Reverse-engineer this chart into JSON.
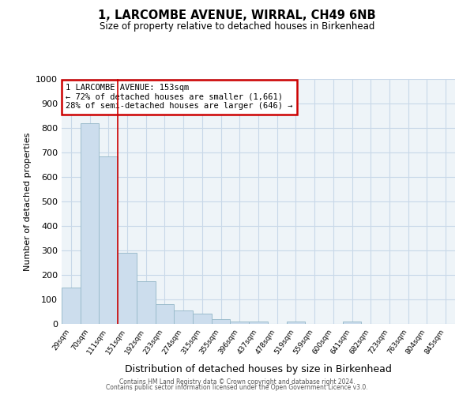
{
  "title": "1, LARCOMBE AVENUE, WIRRAL, CH49 6NB",
  "subtitle": "Size of property relative to detached houses in Birkenhead",
  "xlabel": "Distribution of detached houses by size in Birkenhead",
  "ylabel": "Number of detached properties",
  "categories": [
    "29sqm",
    "70sqm",
    "111sqm",
    "151sqm",
    "192sqm",
    "233sqm",
    "274sqm",
    "315sqm",
    "355sqm",
    "396sqm",
    "437sqm",
    "478sqm",
    "519sqm",
    "559sqm",
    "600sqm",
    "641sqm",
    "682sqm",
    "723sqm",
    "763sqm",
    "804sqm",
    "845sqm"
  ],
  "values": [
    150,
    820,
    685,
    290,
    175,
    80,
    55,
    42,
    20,
    10,
    10,
    0,
    10,
    0,
    0,
    10,
    0,
    0,
    0,
    0,
    0
  ],
  "bar_color": "#ccdded",
  "bar_edge_color": "#9bbccc",
  "grid_color": "#c8d8e8",
  "plot_bg_color": "#eef4f8",
  "fig_bg_color": "#ffffff",
  "red_line_x": 3,
  "annotation_text": "1 LARCOMBE AVENUE: 153sqm\n← 72% of detached houses are smaller (1,661)\n28% of semi-detached houses are larger (646) →",
  "annotation_box_color": "#ffffff",
  "annotation_box_edge_color": "#cc0000",
  "ylim": [
    0,
    1000
  ],
  "yticks": [
    0,
    100,
    200,
    300,
    400,
    500,
    600,
    700,
    800,
    900,
    1000
  ],
  "footer_line1": "Contains HM Land Registry data © Crown copyright and database right 2024.",
  "footer_line2": "Contains public sector information licensed under the Open Government Licence v3.0."
}
